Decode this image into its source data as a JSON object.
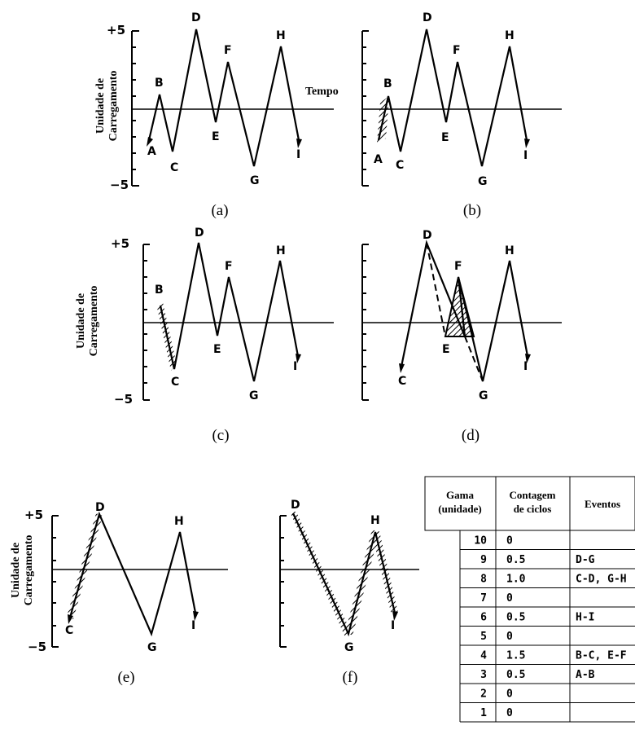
{
  "panels": [
    {
      "id": "a",
      "caption": "(a)",
      "y_top": "+5",
      "y_bottom": "−5",
      "time_label": "Tempo",
      "points": {
        "A": "A",
        "B": "B",
        "C": "C",
        "D": "D",
        "E": "E",
        "F": "F",
        "G": "G",
        "H": "H",
        "I": "I"
      }
    },
    {
      "id": "b",
      "caption": "(b)",
      "points": {
        "A": "A",
        "B": "B",
        "C": "C",
        "D": "D",
        "E": "E",
        "F": "F",
        "G": "G",
        "H": "H",
        "I": "I"
      }
    },
    {
      "id": "c",
      "caption": "(c)",
      "y_top": "+5",
      "y_bottom": "−5",
      "points": {
        "B": "B",
        "C": "C",
        "D": "D",
        "E": "E",
        "F": "F",
        "G": "G",
        "H": "H",
        "I": "I"
      }
    },
    {
      "id": "d",
      "caption": "(d)",
      "points": {
        "C": "C",
        "D": "D",
        "E": "E",
        "F": "F",
        "G": "G",
        "H": "H",
        "I": "I"
      }
    },
    {
      "id": "e",
      "caption": "(e)",
      "y_top": "+5",
      "y_bottom": "−5",
      "points": {
        "C": "C",
        "D": "D",
        "G": "G",
        "H": "H",
        "I": "I"
      }
    },
    {
      "id": "f",
      "caption": "(f)",
      "points": {
        "D": "D",
        "G": "G",
        "H": "H",
        "I": "I"
      }
    }
  ],
  "y_axis_label_line1": "Unidade de",
  "y_axis_label_line2": "Carregamento",
  "table": {
    "headers": {
      "range_line1": "Gama",
      "range_line2": "(unidade)",
      "count_line1": "Contagem",
      "count_line2": "de ciclos",
      "events": "Eventos"
    },
    "rows": [
      {
        "range": "10",
        "count": "0",
        "events": ""
      },
      {
        "range": "9",
        "count": "0.5",
        "events": "D-G"
      },
      {
        "range": "8",
        "count": "1.0",
        "events": "C-D, G-H"
      },
      {
        "range": "7",
        "count": "0",
        "events": ""
      },
      {
        "range": "6",
        "count": "0.5",
        "events": "H-I"
      },
      {
        "range": "5",
        "count": "0",
        "events": ""
      },
      {
        "range": "4",
        "count": "1.5",
        "events": "B-C, E-F"
      },
      {
        "range": "3",
        "count": "0.5",
        "events": "A-B"
      },
      {
        "range": "2",
        "count": "0",
        "events": ""
      },
      {
        "range": "1",
        "count": "0",
        "events": ""
      }
    ]
  }
}
